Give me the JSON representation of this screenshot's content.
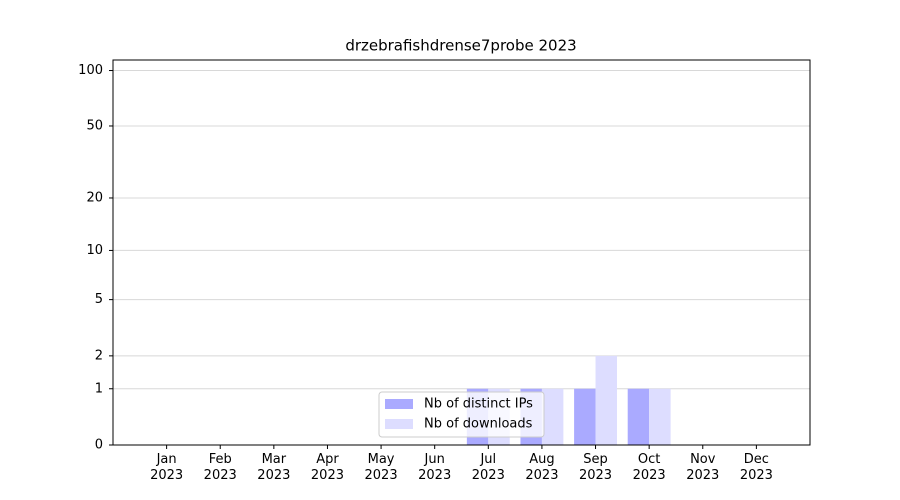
{
  "chart_data": {
    "type": "bar",
    "title": "drzebrafishdrense7probe 2023",
    "categories": [
      "Jan\n2023",
      "Feb\n2023",
      "Mar\n2023",
      "Apr\n2023",
      "May\n2023",
      "Jun\n2023",
      "Jul\n2023",
      "Aug\n2023",
      "Sep\n2023",
      "Oct\n2023",
      "Nov\n2023",
      "Dec\n2023"
    ],
    "series": [
      {
        "name": "Nb of distinct IPs",
        "color": "#aaaaff",
        "values": [
          0,
          0,
          0,
          0,
          0,
          0,
          1,
          1,
          1,
          1,
          0,
          0
        ]
      },
      {
        "name": "Nb of downloads",
        "color": "#ddddff",
        "values": [
          0,
          0,
          0,
          0,
          0,
          0,
          1,
          1,
          2,
          1,
          0,
          0
        ]
      }
    ],
    "yscale": "log1p",
    "ylim": [
      0,
      114
    ],
    "yticks": [
      0,
      1,
      2,
      5,
      10,
      20,
      50,
      100
    ],
    "grid": true,
    "legend": "lower center"
  }
}
